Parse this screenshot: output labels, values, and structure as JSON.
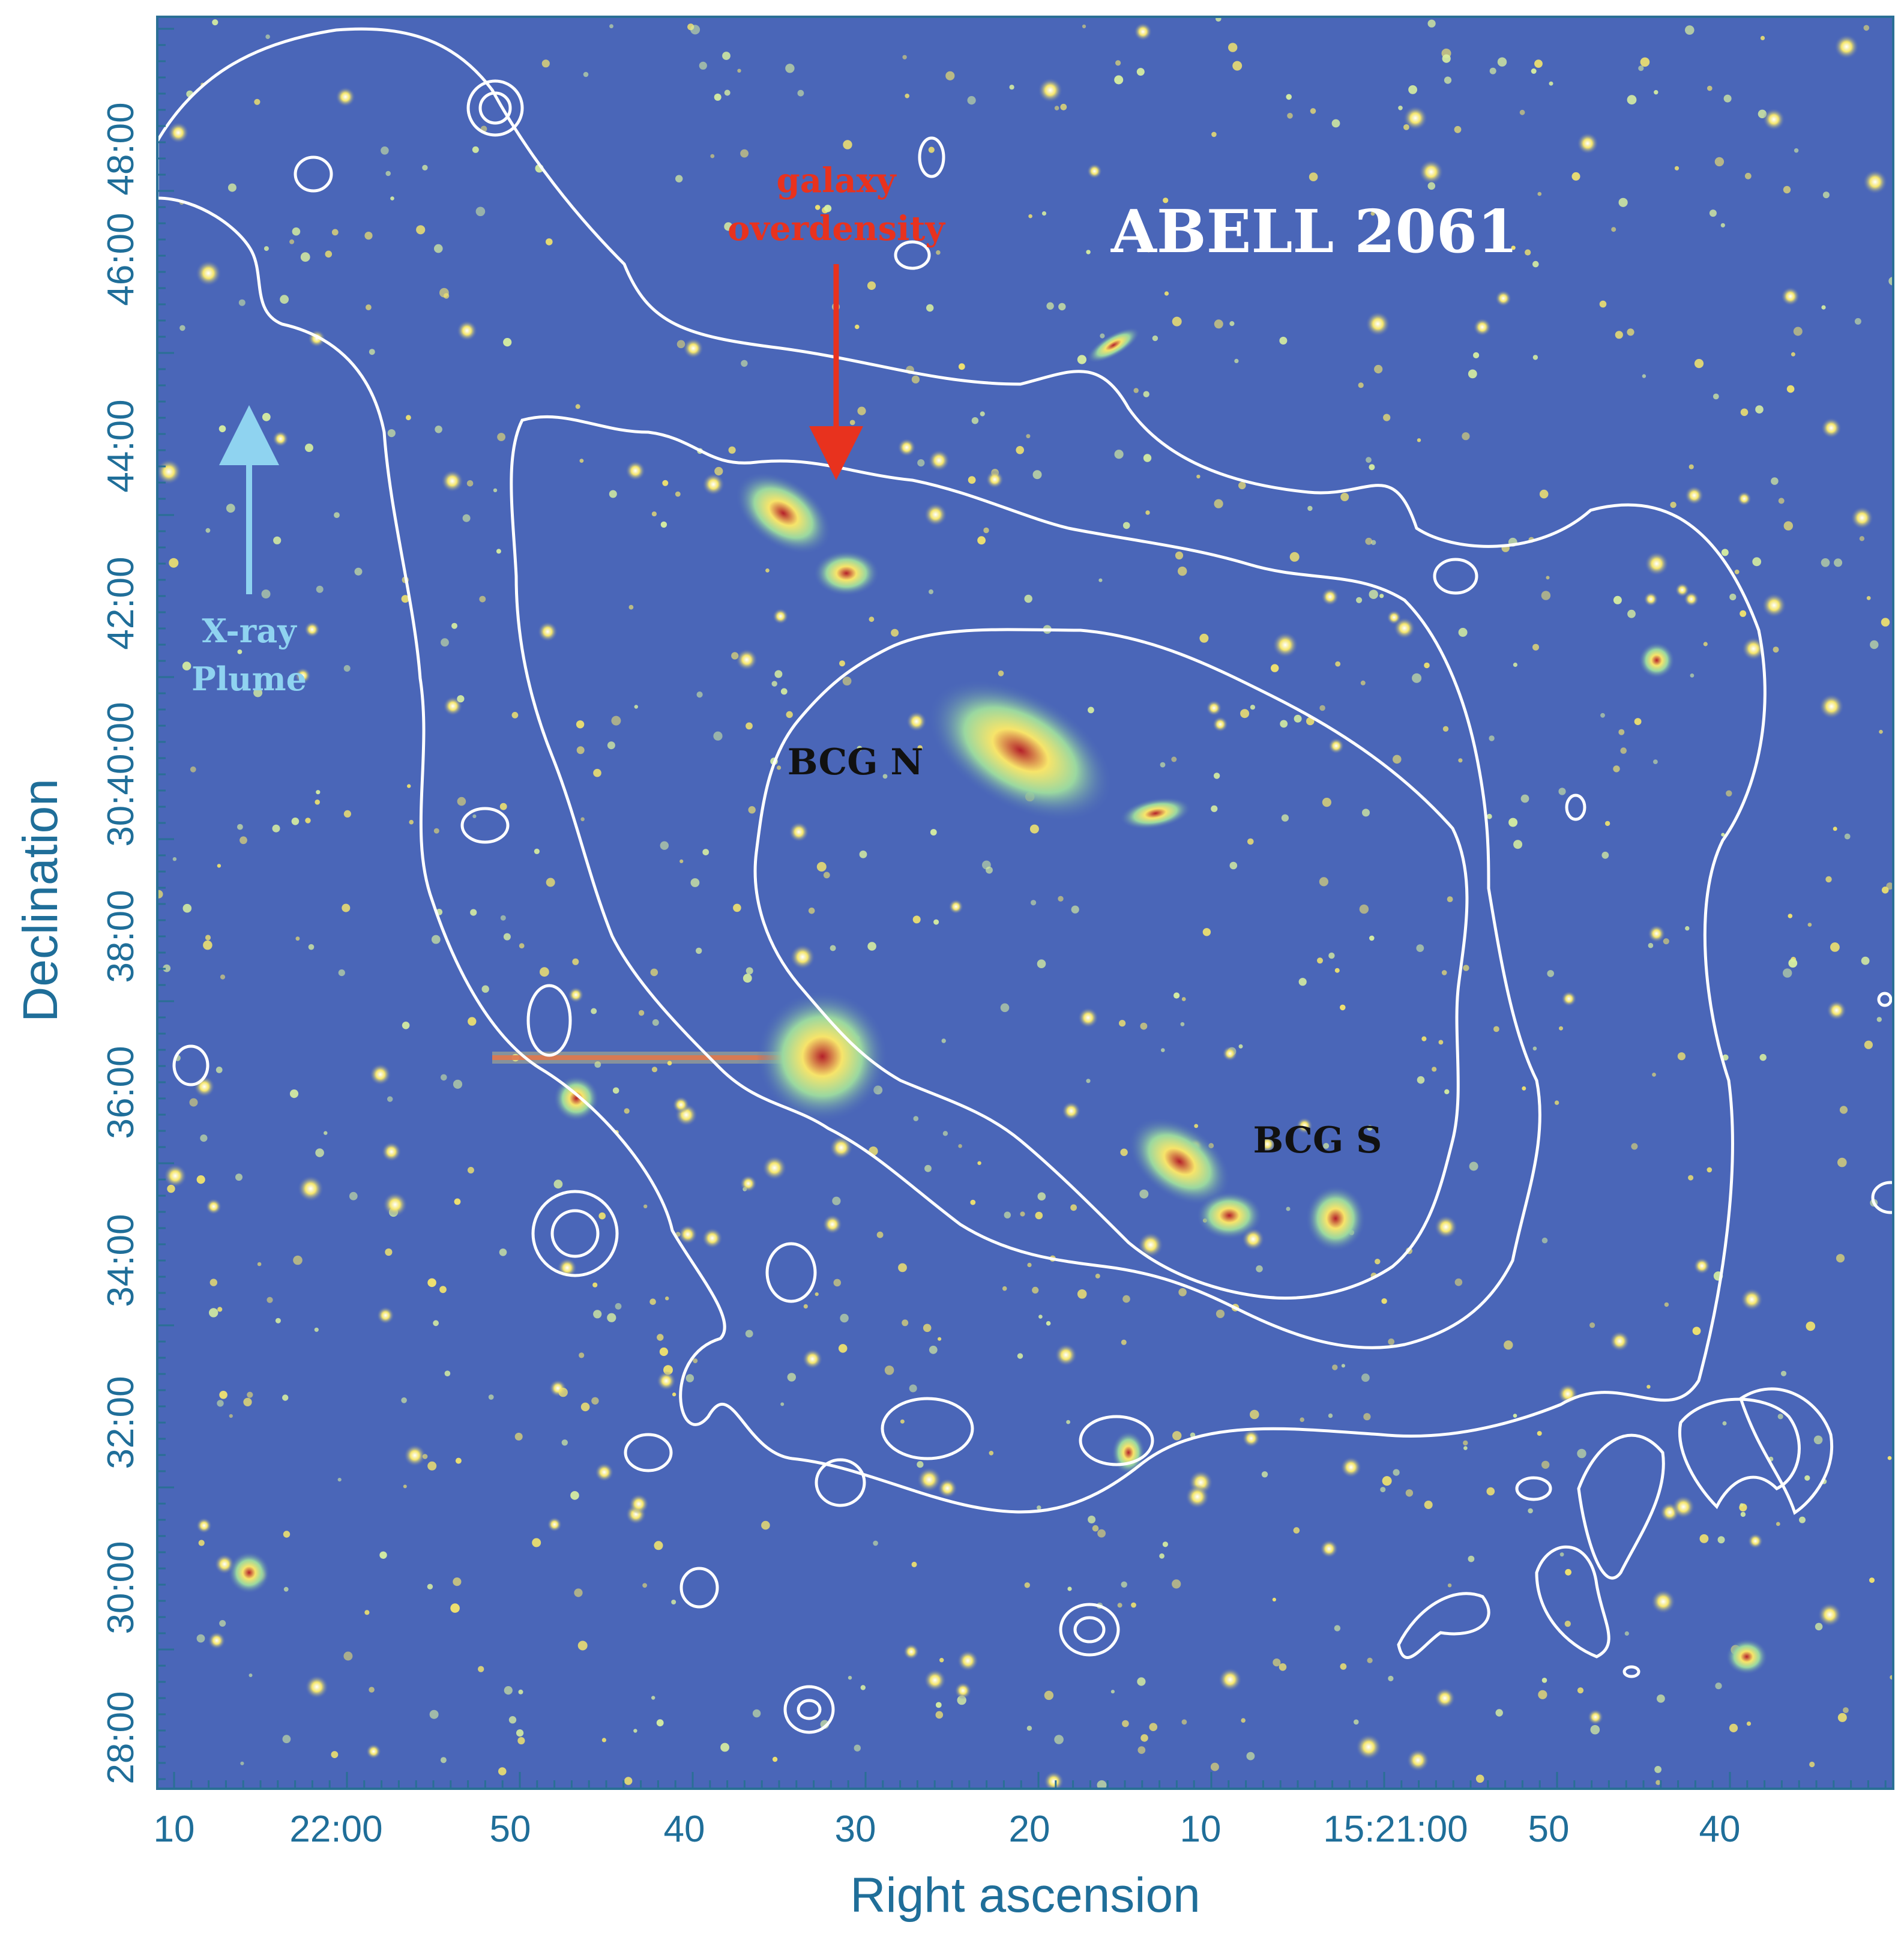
{
  "title": "ABELL 2061",
  "xlabel": "Right ascension",
  "ylabel": "Declination",
  "x_ticks": [
    "10",
    "22:00",
    "50",
    "40",
    "30",
    "20",
    "10",
    "15:21:00",
    "50",
    "40"
  ],
  "y_ticks": [
    "48:00",
    "46:00",
    "44:00",
    "42:00",
    "30:40:00",
    "38:00",
    "36:00",
    "34:00",
    "32:00",
    "30:00",
    "28:00"
  ],
  "annotations": {
    "galaxy_overdensity_line1": "galaxy",
    "galaxy_overdensity_line2": "overdensity",
    "xray_plume_line1": "X-ray",
    "xray_plume_line2": "Plume",
    "bcg_n": "BCG N",
    "bcg_s": "BCG S"
  },
  "colors": {
    "sky_background": "#4a66b8",
    "contours": "#ffffff",
    "axis_text": "#1f6e99",
    "overdensity_arrow": "#e8321e",
    "plume_arrow": "#8fd3f0",
    "title_text": "#ffffff",
    "bcg_label": "#111111"
  }
}
